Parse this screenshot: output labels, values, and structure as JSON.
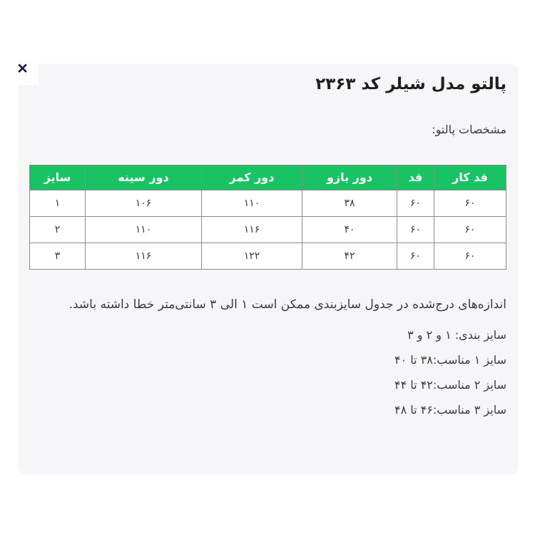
{
  "page": {
    "background": "#ffffff",
    "direction": "rtl"
  },
  "close_button": {
    "glyph": "×"
  },
  "modal": {
    "background": "#f6f6f8",
    "title": "پالتو مدل شیلر کد ۲۳۶۳",
    "subtitle": "مشخصات پالتو:"
  },
  "size_table": {
    "header_bg": "#19c364",
    "header_text_color": "#ffffff",
    "border_color": "#8a8a8a",
    "columns_rtl_first": [
      "قد کار",
      "قد",
      "دور بازو",
      "دور کمر",
      "دور سینه",
      "سایز"
    ],
    "rows_rtl_first": [
      [
        "۶۰",
        "۶۰",
        "۳۸",
        "۱۱۰",
        "۱۰۶",
        "۱"
      ],
      [
        "۶۰",
        "۶۰",
        "۴۰",
        "۱۱۶",
        "۱۱۰",
        "۲"
      ],
      [
        "۶۰",
        "۶۰",
        "۴۲",
        "۱۲۲",
        "۱۱۶",
        "۳"
      ]
    ]
  },
  "notes": {
    "tolerance": "اندازه‌های درج‌شده در جدول سایزبندی ممکن است ۱ الی ۳ سانتی‌متر خطا داشته باشد.",
    "sizing": "سایز بندی: ۱ و ۲ و ۳",
    "size1": "سایز ۱ مناسب:۳۸ تا ۴۰",
    "size2": "سایز ۲ مناسب:۴۲ تا ۴۴",
    "size3": "سایز ۳ مناسب:۴۶ تا ۴۸"
  }
}
